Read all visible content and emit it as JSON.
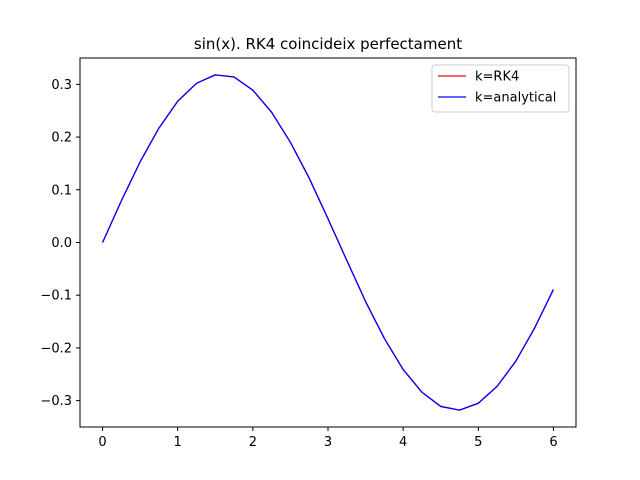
{
  "chart_data": {
    "type": "line",
    "title": "sin(x). RK4 coincideix perfectament",
    "xlabel": "",
    "ylabel": "",
    "xlim": [
      -0.3,
      6.3
    ],
    "ylim": [
      -0.35,
      0.35
    ],
    "x_ticks": [
      0,
      1,
      2,
      3,
      4,
      5,
      6
    ],
    "x_tick_labels": [
      "0",
      "1",
      "2",
      "3",
      "4",
      "5",
      "6"
    ],
    "y_ticks": [
      -0.3,
      -0.2,
      -0.1,
      0.0,
      0.1,
      0.2,
      0.3
    ],
    "y_tick_labels": [
      "−0.3",
      "−0.2",
      "−0.1",
      "0.0",
      "0.1",
      "0.2",
      "0.3"
    ],
    "grid": false,
    "legend_position": "top-right",
    "series": [
      {
        "name": "k=RK4",
        "color": "#ff0000",
        "x": [
          0,
          0.25,
          0.5,
          0.75,
          1.0,
          1.25,
          1.5,
          1.75,
          2.0,
          2.25,
          2.5,
          2.75,
          3.0,
          3.25,
          3.5,
          3.75,
          4.0,
          4.25,
          4.5,
          4.75,
          5.0,
          5.25,
          5.5,
          5.75,
          6.0
        ],
        "y": [
          0.0,
          0.079,
          0.153,
          0.217,
          0.268,
          0.302,
          0.318,
          0.314,
          0.289,
          0.247,
          0.19,
          0.122,
          0.045,
          -0.034,
          -0.112,
          -0.182,
          -0.241,
          -0.284,
          -0.311,
          -0.318,
          -0.305,
          -0.273,
          -0.225,
          -0.162,
          -0.089
        ]
      },
      {
        "name": "k=analytical",
        "color": "#0000ff",
        "x": [
          0,
          0.25,
          0.5,
          0.75,
          1.0,
          1.25,
          1.5,
          1.75,
          2.0,
          2.25,
          2.5,
          2.75,
          3.0,
          3.25,
          3.5,
          3.75,
          4.0,
          4.25,
          4.5,
          4.75,
          5.0,
          5.25,
          5.5,
          5.75,
          6.0
        ],
        "y": [
          0.0,
          0.079,
          0.153,
          0.217,
          0.268,
          0.302,
          0.318,
          0.314,
          0.289,
          0.247,
          0.19,
          0.122,
          0.045,
          -0.034,
          -0.112,
          -0.182,
          -0.241,
          -0.284,
          -0.311,
          -0.318,
          -0.305,
          -0.273,
          -0.225,
          -0.162,
          -0.089
        ]
      }
    ]
  }
}
